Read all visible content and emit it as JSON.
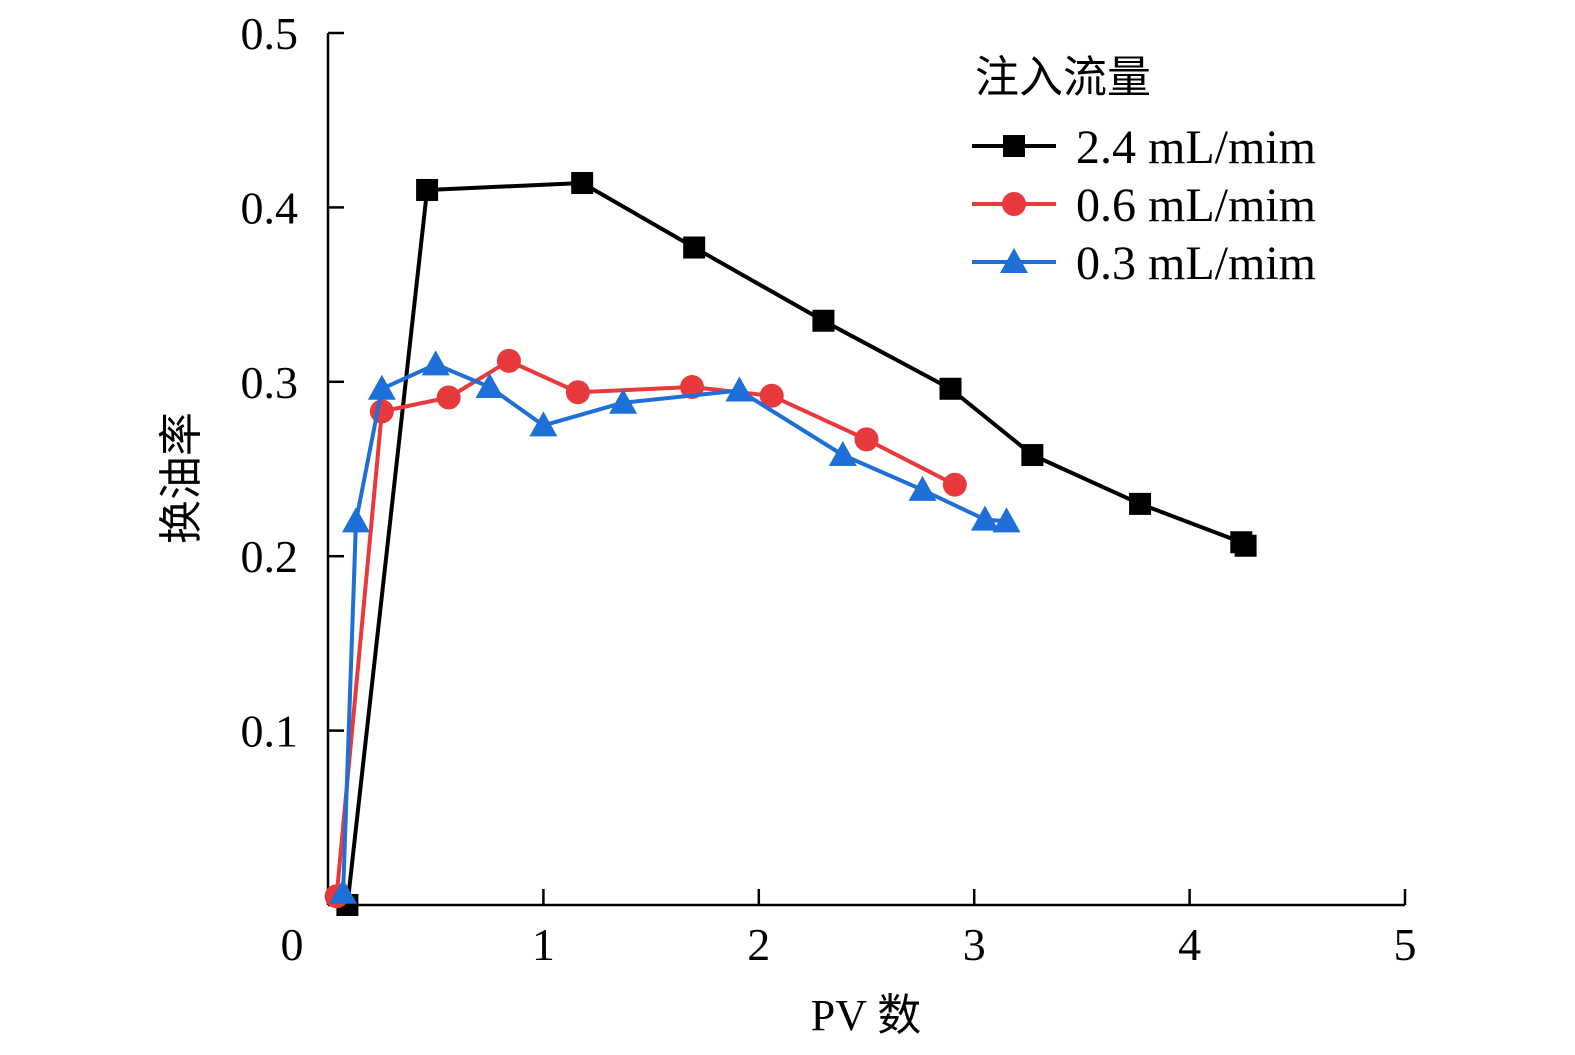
{
  "chart_data": {
    "type": "line",
    "xlabel": "PV 数",
    "ylabel": "换油率",
    "xlim": [
      0,
      5
    ],
    "ylim": [
      0,
      0.5
    ],
    "x_ticks": [
      "0",
      "1",
      "2",
      "3",
      "4",
      "5"
    ],
    "y_ticks": [
      "0.1",
      "0.2",
      "0.3",
      "0.4",
      "0.5"
    ],
    "grid": false,
    "legend": {
      "title": "注入流量",
      "position": "top-right"
    },
    "series": [
      {
        "name": "2.4 mL/mim",
        "color": "#000000",
        "marker": "square",
        "x": [
          0.09,
          0.46,
          1.18,
          1.7,
          2.3,
          2.89,
          3.27,
          3.77,
          4.24,
          4.26
        ],
        "y": [
          0.0,
          0.41,
          0.414,
          0.377,
          0.335,
          0.296,
          0.258,
          0.23,
          0.208,
          0.206
        ]
      },
      {
        "name": "0.6 mL/mim",
        "color": "#e8393c",
        "marker": "circle",
        "x": [
          0.04,
          0.25,
          0.56,
          0.84,
          1.16,
          1.69,
          2.06,
          2.5,
          2.91
        ],
        "y": [
          0.005,
          0.283,
          0.291,
          0.312,
          0.294,
          0.297,
          0.292,
          0.267,
          0.241
        ]
      },
      {
        "name": "0.3 mL/mim",
        "color": "#1e6fd8",
        "marker": "triangle",
        "x": [
          0.07,
          0.13,
          0.25,
          0.5,
          0.75,
          1.0,
          1.37,
          1.91,
          2.39,
          2.76,
          3.05,
          3.15
        ],
        "y": [
          0.007,
          0.22,
          0.296,
          0.31,
          0.297,
          0.275,
          0.288,
          0.295,
          0.258,
          0.238,
          0.221,
          0.22
        ]
      }
    ]
  }
}
